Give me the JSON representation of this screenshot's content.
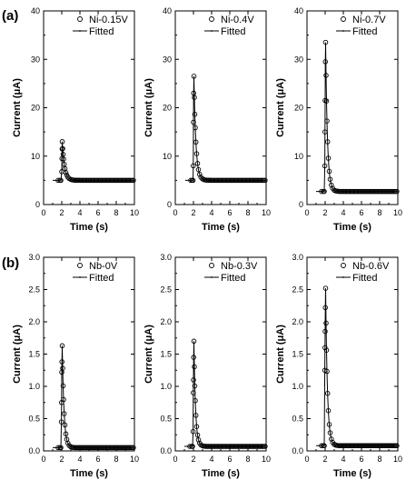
{
  "figure": {
    "panel_labels": [
      "(a)",
      "(b)"
    ]
  },
  "chart_data": [
    {
      "type": "scatter",
      "row": 0,
      "xlabel": "Time (s)",
      "ylabel": "Current (μA)",
      "xlim": [
        0,
        10
      ],
      "ylim": [
        0,
        40
      ],
      "xticks": [
        0,
        2,
        4,
        6,
        8,
        10
      ],
      "yticks": [
        0,
        10,
        20,
        30,
        40
      ],
      "legend": [
        "Ni-0.15V",
        "Fitted"
      ],
      "legend_position": "top-right",
      "baseline": 5.0,
      "peak": 13.0,
      "peak_x": 2.05,
      "pre_x": [
        1.6,
        1.8,
        1.9
      ],
      "rise_x": [
        2.0,
        2.02,
        2.04
      ],
      "rise_y": [
        6.8,
        9.5,
        11.5
      ],
      "decay_tau": 0.25
    },
    {
      "type": "scatter",
      "row": 0,
      "xlabel": "Time (s)",
      "ylabel": "Current (μA)",
      "xlim": [
        0,
        10
      ],
      "ylim": [
        0,
        40
      ],
      "xticks": [
        0,
        2,
        4,
        6,
        8,
        10
      ],
      "yticks": [
        0,
        10,
        20,
        30,
        40
      ],
      "legend": [
        "Ni-0.4V",
        "Fitted"
      ],
      "legend_position": "top-right",
      "baseline": 5.0,
      "peak": 26.5,
      "peak_x": 2.05,
      "pre_x": [
        1.7,
        1.85,
        1.95
      ],
      "rise_x": [
        1.98,
        2.0,
        2.02
      ],
      "rise_y": [
        8.0,
        17.0,
        23.0
      ],
      "decay_tau": 0.22
    },
    {
      "type": "scatter",
      "row": 0,
      "xlabel": "Time (s)",
      "ylabel": "Current (μA)",
      "xlim": [
        0,
        10
      ],
      "ylim": [
        0,
        40
      ],
      "xticks": [
        0,
        2,
        4,
        6,
        8,
        10
      ],
      "yticks": [
        0,
        10,
        20,
        30,
        40
      ],
      "legend": [
        "Ni-0.7V",
        "Fitted"
      ],
      "legend_position": "top-right",
      "baseline": 2.7,
      "peak": 33.5,
      "peak_x": 2.05,
      "pre_x": [
        1.6,
        1.8,
        1.9
      ],
      "rise_x": [
        1.96,
        1.98,
        2.0,
        2.02
      ],
      "rise_y": [
        8.0,
        15.0,
        21.5,
        29.5
      ],
      "decay_tau": 0.2
    },
    {
      "type": "scatter",
      "row": 1,
      "xlabel": "Time (s)",
      "ylabel": "Current (μA)",
      "xlim": [
        0,
        10
      ],
      "ylim": [
        0,
        3.0
      ],
      "xticks": [
        0,
        2,
        4,
        6,
        8,
        10
      ],
      "yticks": [
        0.0,
        0.5,
        1.0,
        1.5,
        2.0,
        2.5,
        3.0
      ],
      "legend": [
        "Nb-0V",
        "Fitted"
      ],
      "legend_position": "top-right",
      "baseline": 0.05,
      "peak": 1.63,
      "peak_x": 2.05,
      "pre_x": [
        1.6,
        1.8,
        1.9
      ],
      "rise_x": [
        1.96,
        1.98,
        2.0,
        2.02
      ],
      "rise_y": [
        0.45,
        0.75,
        1.22,
        1.38
      ],
      "decay_tau": 0.2
    },
    {
      "type": "scatter",
      "row": 1,
      "xlabel": "Time (s)",
      "ylabel": "Current (μA)",
      "xlim": [
        0,
        10
      ],
      "ylim": [
        0,
        3.0
      ],
      "xticks": [
        0,
        2,
        4,
        6,
        8,
        10
      ],
      "yticks": [
        0.0,
        0.5,
        1.0,
        1.5,
        2.0,
        2.5,
        3.0
      ],
      "legend": [
        "Nb-0.3V",
        "Fitted"
      ],
      "legend_position": "top-right",
      "baseline": 0.07,
      "peak": 1.7,
      "peak_x": 2.05,
      "pre_x": [
        1.6,
        1.8,
        1.9
      ],
      "rise_x": [
        1.96,
        1.98,
        2.0,
        2.02
      ],
      "rise_y": [
        0.3,
        0.9,
        1.1,
        1.45
      ],
      "decay_tau": 0.18
    },
    {
      "type": "scatter",
      "row": 1,
      "xlabel": "Time (s)",
      "ylabel": "Current (μA)",
      "xlim": [
        0,
        10
      ],
      "ylim": [
        0,
        3.0
      ],
      "xticks": [
        0,
        2,
        4,
        6,
        8,
        10
      ],
      "yticks": [
        0.0,
        0.5,
        1.0,
        1.5,
        2.0,
        2.5,
        3.0
      ],
      "legend": [
        "Nb-0.6V",
        "Fitted"
      ],
      "legend_position": "top-right",
      "baseline": 0.08,
      "peak": 2.52,
      "peak_x": 2.05,
      "pre_x": [
        1.6,
        1.8,
        1.9
      ],
      "rise_x": [
        1.96,
        1.98,
        2.0,
        2.02
      ],
      "rise_y": [
        1.25,
        1.6,
        1.85,
        2.22
      ],
      "decay_tau": 0.2
    }
  ]
}
